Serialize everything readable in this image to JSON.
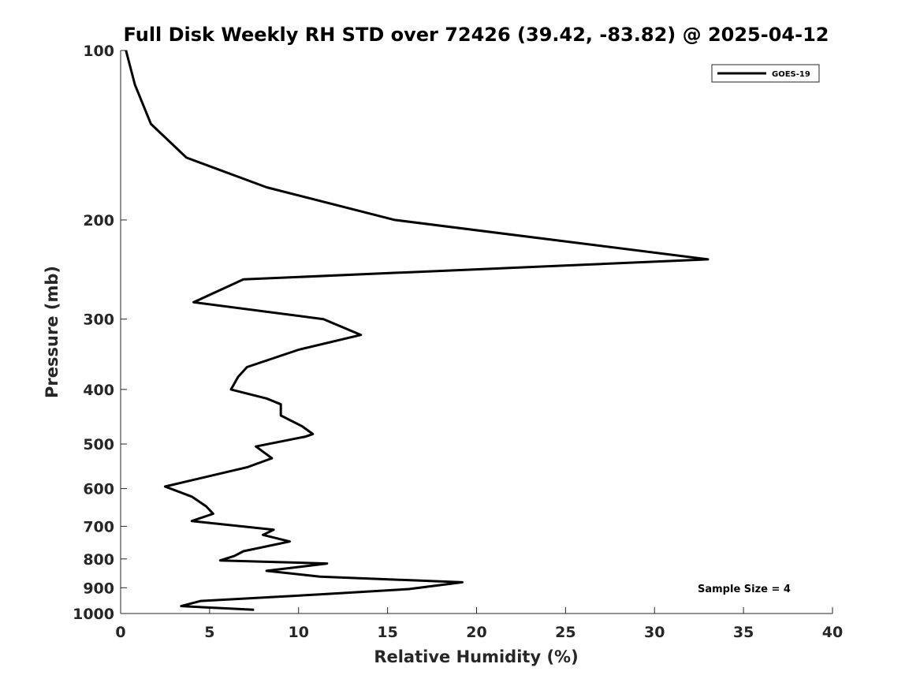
{
  "chart_data": {
    "type": "line",
    "title": "Full Disk Weekly RH STD over 72426 (39.42, -83.82) @ 2025-04-12",
    "xlabel": "Relative Humidity (%)",
    "ylabel": "Pressure (mb)",
    "xlim": [
      0,
      40
    ],
    "ylim": [
      1000,
      100
    ],
    "yscale": "log",
    "xticks": [
      0,
      5,
      10,
      15,
      20,
      25,
      30,
      35,
      40
    ],
    "xtick_labels": [
      "0",
      "5",
      "10",
      "15",
      "20",
      "25",
      "30",
      "35",
      "40"
    ],
    "yticks": [
      100,
      200,
      300,
      400,
      500,
      600,
      700,
      800,
      900,
      1000
    ],
    "ytick_labels": [
      "100",
      "200",
      "300",
      "400",
      "500",
      "600",
      "700",
      "800",
      "900",
      "1000"
    ],
    "legend_position": "top-right",
    "legend": [
      "GOES-19"
    ],
    "annotation": "Sample Size = 4",
    "series": [
      {
        "name": "GOES-19",
        "color": "#000000",
        "x": [
          0.3,
          0.8,
          1.7,
          3.7,
          8.2,
          15.4,
          33.0,
          6.9,
          4.1,
          11.4,
          13.5,
          10.0,
          7.1,
          6.6,
          6.2,
          8.2,
          9.0,
          9.0,
          10.2,
          10.8,
          10.4,
          7.6,
          8.5,
          7.1,
          5.0,
          2.5,
          4.0,
          4.8,
          5.2,
          4.0,
          8.6,
          8.0,
          9.5,
          6.9,
          6.4,
          5.6,
          11.6,
          8.2,
          11.2,
          19.2,
          16.2,
          11.2,
          4.5,
          3.4,
          7.5
        ],
        "y": [
          100,
          115,
          135,
          155,
          175,
          200,
          235,
          255,
          280,
          300,
          320,
          340,
          365,
          380,
          400,
          415,
          425,
          445,
          465,
          480,
          485,
          505,
          530,
          550,
          570,
          595,
          620,
          645,
          665,
          685,
          710,
          725,
          745,
          775,
          790,
          805,
          815,
          840,
          860,
          880,
          905,
          925,
          950,
          970,
          985
        ]
      }
    ]
  }
}
